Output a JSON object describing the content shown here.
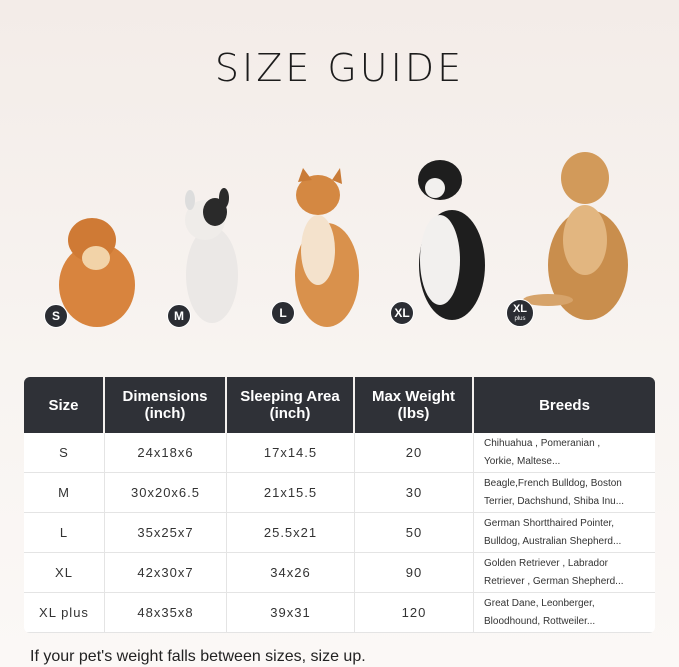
{
  "title": "SIZE GUIDE",
  "sizes": [
    {
      "badge": "S"
    },
    {
      "badge": "M"
    },
    {
      "badge": "L"
    },
    {
      "badge": "XL"
    },
    {
      "badge": "XL",
      "sub": "plus"
    }
  ],
  "table": {
    "headers": [
      "Size",
      "Dimensions\n(inch)",
      "Sleeping Area\n(inch)",
      "Max Weight\n(lbs)",
      "Breeds"
    ],
    "header_lines": [
      [
        "Size"
      ],
      [
        "Dimensions",
        "(inch)"
      ],
      [
        "Sleeping Area",
        "(inch)"
      ],
      [
        "Max Weight",
        "(lbs)"
      ],
      [
        "Breeds"
      ]
    ],
    "rows": [
      [
        "S",
        "24x18x6",
        "17x14.5",
        "20",
        "Chihuahua , Pomeranian ,",
        "Yorkie, Maltese..."
      ],
      [
        "M",
        "30x20x6.5",
        "21x15.5",
        "30",
        "Beagle,French Bulldog, Boston",
        "Terrier, Dachshund, Shiba Inu..."
      ],
      [
        "L",
        "35x25x7",
        "25.5x21",
        "50",
        "German Shortthaired Pointer,",
        "Bulldog, Australian Shepherd..."
      ],
      [
        "XL",
        "42x30x7",
        "34x26",
        "90",
        "Golden Retriever , Labrador",
        "Retriever , German Shepherd..."
      ],
      [
        "XL plus",
        "48x35x8",
        "39x31",
        "120",
        "Great Dane, Leonberger,",
        "Bloodhound, Rottweiler..."
      ]
    ]
  },
  "note": "If your pet's weight falls between sizes, size up."
}
